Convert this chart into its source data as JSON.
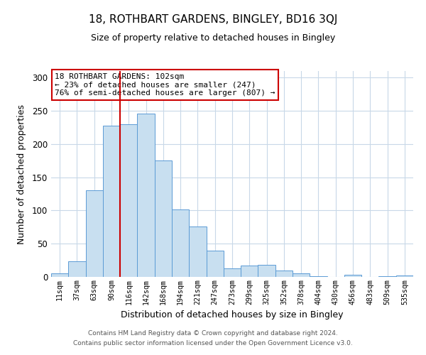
{
  "title": "18, ROTHBART GARDENS, BINGLEY, BD16 3QJ",
  "subtitle": "Size of property relative to detached houses in Bingley",
  "xlabel": "Distribution of detached houses by size in Bingley",
  "ylabel": "Number of detached properties",
  "bar_labels": [
    "11sqm",
    "37sqm",
    "63sqm",
    "90sqm",
    "116sqm",
    "142sqm",
    "168sqm",
    "194sqm",
    "221sqm",
    "247sqm",
    "273sqm",
    "299sqm",
    "325sqm",
    "352sqm",
    "378sqm",
    "404sqm",
    "430sqm",
    "456sqm",
    "483sqm",
    "509sqm",
    "535sqm"
  ],
  "bar_values": [
    5,
    23,
    130,
    228,
    230,
    246,
    175,
    102,
    76,
    40,
    13,
    17,
    18,
    10,
    5,
    1,
    0,
    3,
    0,
    1,
    2
  ],
  "bar_color": "#c8dff0",
  "bar_edge_color": "#5b9bd5",
  "vline_x": 3.5,
  "vline_color": "#cc0000",
  "ylim": [
    0,
    310
  ],
  "yticks": [
    0,
    50,
    100,
    150,
    200,
    250,
    300
  ],
  "annotation_title": "18 ROTHBART GARDENS: 102sqm",
  "annotation_line1": "← 23% of detached houses are smaller (247)",
  "annotation_line2": "76% of semi-detached houses are larger (807) →",
  "annotation_box_color": "#ffffff",
  "annotation_box_edge": "#cc0000",
  "footer_line1": "Contains HM Land Registry data © Crown copyright and database right 2024.",
  "footer_line2": "Contains public sector information licensed under the Open Government Licence v3.0.",
  "background_color": "#ffffff",
  "grid_color": "#c8d8e8"
}
